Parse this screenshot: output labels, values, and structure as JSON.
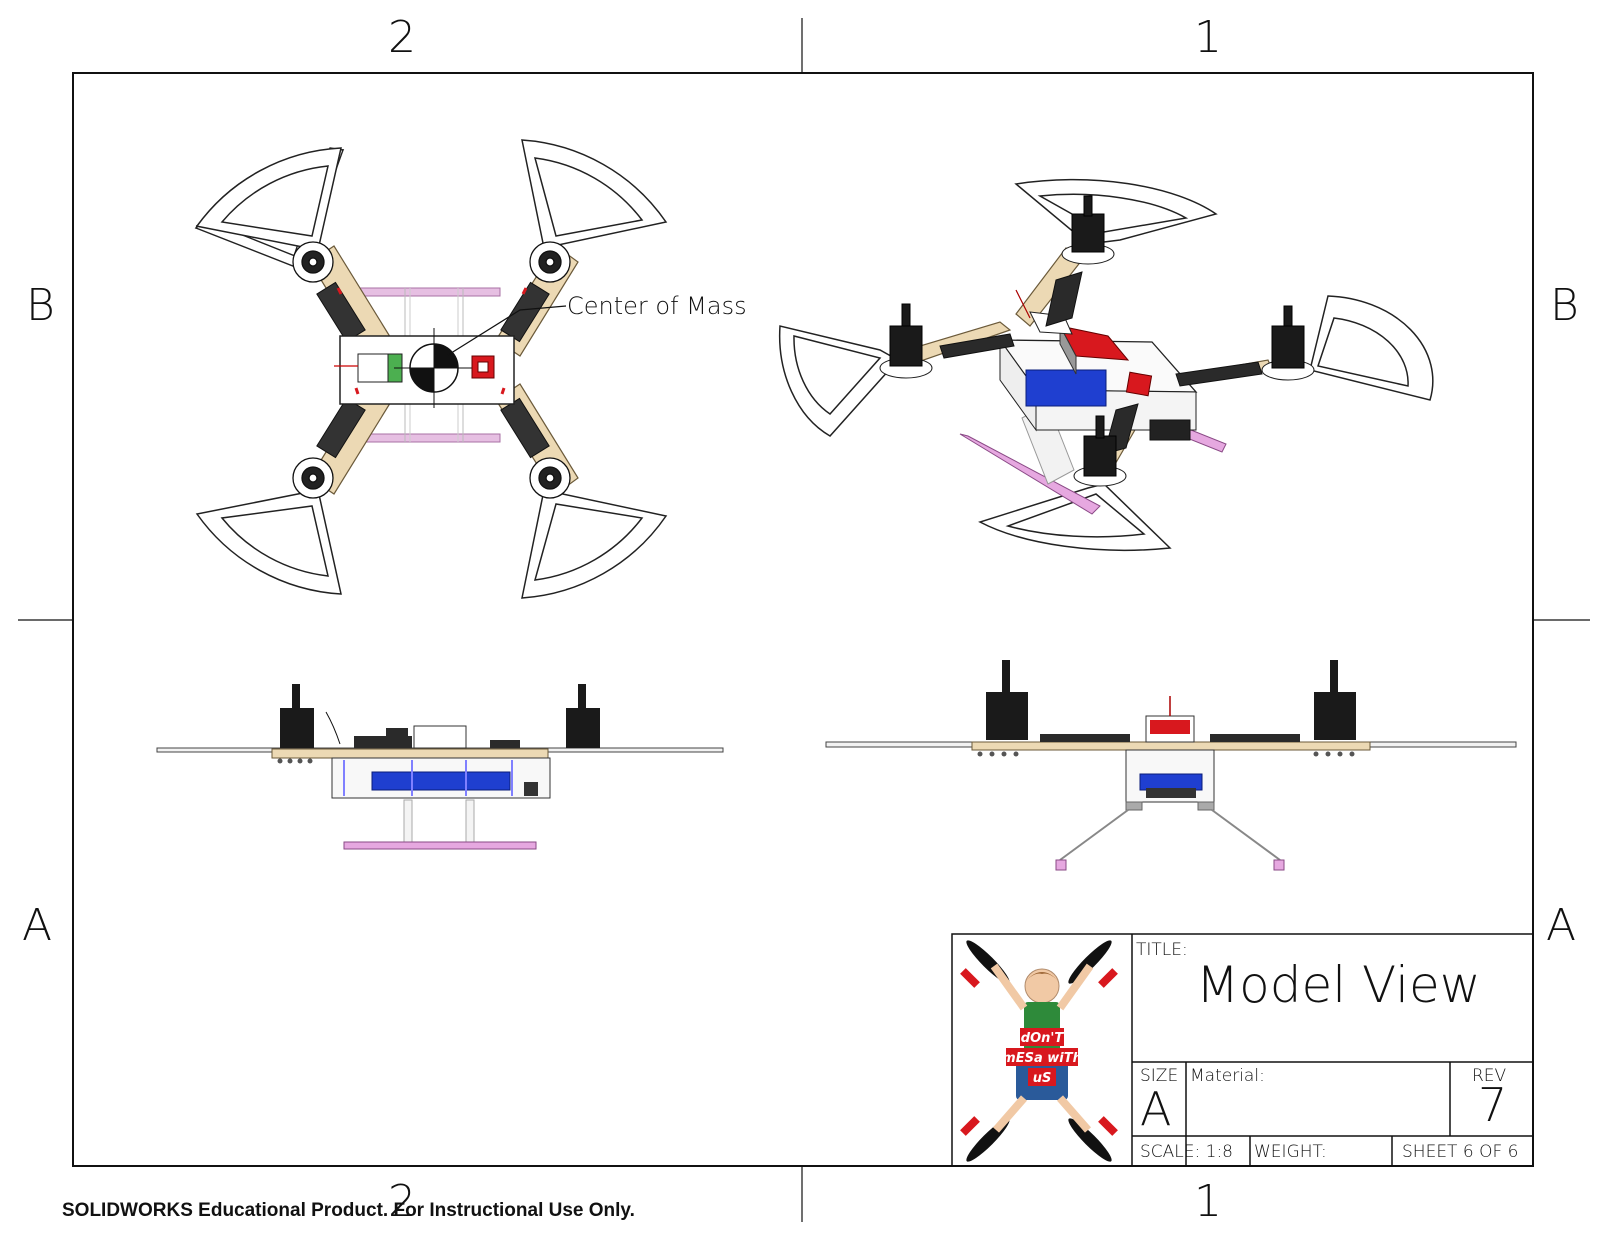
{
  "sheet": {
    "zones_top": [
      "2",
      "1"
    ],
    "zones_bottom": [
      "2",
      "1"
    ],
    "zones_left": [
      "B",
      "A"
    ],
    "zones_right": [
      "B",
      "A"
    ]
  },
  "callout": {
    "label": "Center of Mass"
  },
  "title_block": {
    "title_label": "TITLE:",
    "title": "Model View",
    "size_label": "SIZE",
    "size": "A",
    "material_label": "Material:",
    "rev_label": "REV",
    "rev": "7",
    "scale": "SCALE: 1:8",
    "weight_label": "WEIGHT:",
    "sheet": "SHEET 6 OF 6",
    "logo_lines": [
      "dOn'T",
      "mESa wiTh",
      "uS"
    ]
  },
  "footer": {
    "note": "SOLIDWORKS Educational Product. For Instructional Use Only."
  },
  "colors": {
    "frame": "#111111",
    "arm_wood": "#e9d6b0",
    "landing_pink": "#e6a8e0",
    "battery_blue": "#1f3fd0",
    "motor_black": "#1a1a1a",
    "accent_red": "#d8181e"
  }
}
